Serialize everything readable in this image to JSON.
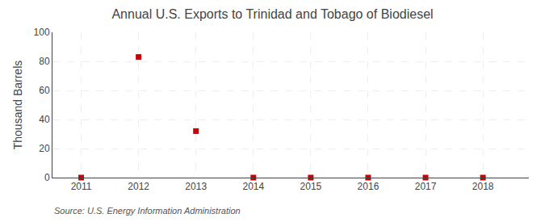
{
  "chart_data": {
    "type": "scatter",
    "title": "Annual U.S. Exports to Trinidad and Tobago of Biodiesel",
    "y_label": "Thousand Barrels",
    "annotations": [
      "Source: U.S. Energy Information Administration"
    ],
    "x": [
      2011,
      2012,
      2013,
      2014,
      2015,
      2016,
      2017,
      2018
    ],
    "values": [
      0,
      83,
      32,
      0,
      0,
      0,
      0,
      0
    ],
    "color": "#cc0000",
    "marker": "square",
    "xlim": [
      2010.5,
      2018.8
    ],
    "xticks": [
      2011,
      2012,
      2013,
      2014,
      2015,
      2016,
      2017,
      2018
    ],
    "ylim": [
      0,
      100
    ],
    "yticks": [
      0,
      20,
      40,
      60,
      80,
      100
    ],
    "grid": true
  }
}
